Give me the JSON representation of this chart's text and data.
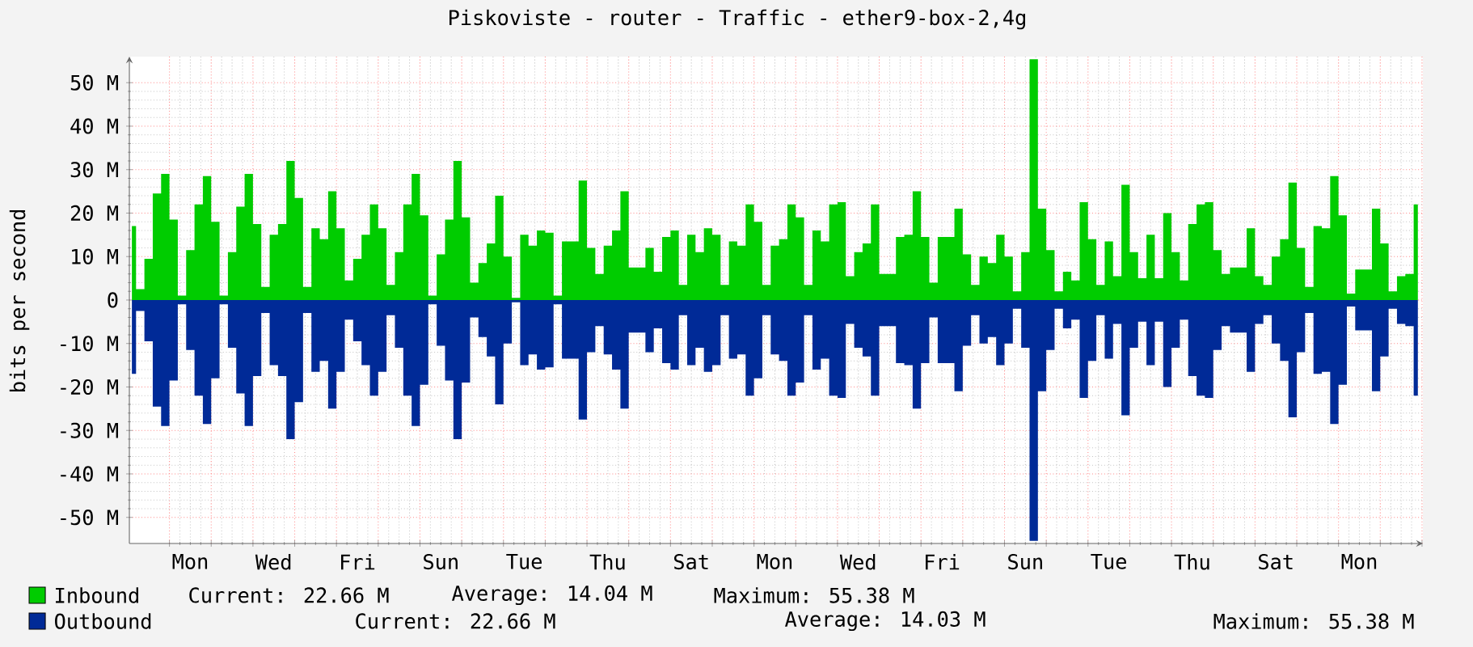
{
  "chart_data": {
    "type": "area",
    "title": "Piskoviste - router - Traffic - ether9-box-2,4g",
    "ylabel": "bits per second",
    "categories": [
      null,
      null,
      null,
      null,
      null,
      null,
      null,
      "Mon",
      null,
      null,
      null,
      null,
      null,
      null,
      null,
      null,
      null,
      "Wed",
      null,
      null,
      null,
      null,
      null,
      null,
      null,
      null,
      null,
      "Fri",
      null,
      null,
      null,
      null,
      null,
      null,
      null,
      null,
      null,
      "Sun",
      null,
      null,
      null,
      null,
      null,
      null,
      null,
      null,
      null,
      "Tue",
      null,
      null,
      null,
      null,
      null,
      null,
      null,
      null,
      null,
      "Thu",
      null,
      null,
      null,
      null,
      null,
      null,
      null,
      null,
      null,
      "Sat",
      null,
      null,
      null,
      null,
      null,
      null,
      null,
      null,
      null,
      "Mon",
      null,
      null,
      null,
      null,
      null,
      null,
      null,
      null,
      null,
      "Wed",
      null,
      null,
      null,
      null,
      null,
      null,
      null,
      null,
      null,
      "Fri",
      null,
      null,
      null,
      null,
      null,
      null,
      null,
      null,
      null,
      "Sun",
      null,
      null,
      null,
      null,
      null,
      null,
      null,
      null,
      null,
      "Tue",
      null,
      null,
      null,
      null,
      null,
      null,
      null,
      null,
      null,
      "Thu",
      null,
      null,
      null,
      null,
      null,
      null,
      null,
      null,
      null,
      "Sat",
      null,
      null,
      null,
      null,
      null,
      null,
      null,
      null,
      null,
      "Mon",
      null,
      null,
      null,
      null,
      null,
      null,
      null
    ],
    "series": [
      {
        "name": "Inbound",
        "color": "#00cc00",
        "values": [
          17,
          2.5,
          9.5,
          24.5,
          29,
          18.5,
          1,
          11.5,
          22,
          28.5,
          18,
          1,
          11,
          21.5,
          29,
          17.5,
          3,
          15,
          17.5,
          32,
          23.5,
          3,
          16.5,
          14,
          25,
          16.5,
          4.5,
          9.5,
          15,
          22,
          16.5,
          3.5,
          11,
          22,
          29,
          19.5,
          1,
          10.5,
          18.5,
          32,
          19,
          4,
          8.5,
          13,
          24,
          10,
          0.5,
          15,
          12.5,
          16,
          15.5,
          1,
          13.5,
          13.5,
          27.5,
          12,
          6,
          12.5,
          16,
          25,
          7.5,
          7.5,
          12,
          6.5,
          14.5,
          16,
          3.5,
          15,
          11,
          16.5,
          15,
          3.5,
          13.5,
          12.5,
          22,
          18,
          3.5,
          12.5,
          14,
          22,
          19,
          3.5,
          16,
          13.5,
          22,
          22.5,
          5.5,
          11,
          13,
          22,
          6,
          6,
          14.5,
          15,
          25,
          14.5,
          4,
          14.5,
          14.5,
          21,
          10.5,
          3.5,
          10,
          8.5,
          15,
          10,
          2,
          11,
          55.4,
          21,
          11.5,
          2,
          6.5,
          4.5,
          22.5,
          14,
          3.5,
          13.5,
          5.5,
          26.5,
          11,
          5,
          15,
          5,
          20,
          11,
          4.5,
          17.5,
          22,
          22.5,
          11.5,
          6,
          7.5,
          7.5,
          16.5,
          5.5,
          3.5,
          10,
          14,
          27,
          12,
          3,
          17,
          16.5,
          28.5,
          19.5,
          1.5,
          7,
          7,
          21,
          13,
          2,
          5.5,
          6,
          22
        ]
      },
      {
        "name": "Outbound",
        "color": "#002a97",
        "values": [
          -17,
          -2.5,
          -9.5,
          -24.5,
          -29,
          -18.5,
          -1,
          -11.5,
          -22,
          -28.5,
          -18,
          -1,
          -11,
          -21.5,
          -29,
          -17.5,
          -3,
          -15,
          -17.5,
          -32,
          -23.5,
          -3,
          -16.5,
          -14,
          -25,
          -16.5,
          -4.5,
          -9.5,
          -15,
          -22,
          -16.5,
          -3.5,
          -11,
          -22,
          -29,
          -19.5,
          -1,
          -10.5,
          -18.5,
          -32,
          -19,
          -4,
          -8.5,
          -13,
          -24,
          -10,
          -0.5,
          -15,
          -12.5,
          -16,
          -15.5,
          -1,
          -13.5,
          -13.5,
          -27.5,
          -12,
          -6,
          -12.5,
          -16,
          -25,
          -7.5,
          -7.5,
          -12,
          -6.5,
          -14.5,
          -16,
          -3.5,
          -15,
          -11,
          -16.5,
          -15,
          -3.5,
          -13.5,
          -12.5,
          -22,
          -18,
          -3.5,
          -12.5,
          -14,
          -22,
          -19,
          -3.5,
          -16,
          -13.5,
          -22,
          -22.5,
          -5.5,
          -11,
          -13,
          -22,
          -6,
          -6,
          -14.5,
          -15,
          -25,
          -14.5,
          -4,
          -14.5,
          -14.5,
          -21,
          -10.5,
          -3.5,
          -10,
          -8.5,
          -15,
          -10,
          -2,
          -11,
          -55.4,
          -21,
          -11.5,
          -2,
          -6.5,
          -4.5,
          -22.5,
          -14,
          -3.5,
          -13.5,
          -5.5,
          -26.5,
          -11,
          -5,
          -15,
          -5,
          -20,
          -11,
          -4.5,
          -17.5,
          -22,
          -22.5,
          -11.5,
          -6,
          -7.5,
          -7.5,
          -16.5,
          -5.5,
          -3.5,
          -10,
          -14,
          -27,
          -12,
          -3,
          -17,
          -16.5,
          -28.5,
          -19.5,
          -1.5,
          -7,
          -7,
          -21,
          -13,
          -2,
          -5.5,
          -6,
          -22
        ]
      }
    ],
    "ylim": [
      -56,
      56
    ],
    "yticks": [
      {
        "value": -50,
        "label": "-50 M"
      },
      {
        "value": -40,
        "label": "-40 M"
      },
      {
        "value": -30,
        "label": "-30 M"
      },
      {
        "value": -20,
        "label": "-20 M"
      },
      {
        "value": -10,
        "label": "-10 M"
      },
      0,
      {
        "value": 10,
        "label": "10 M"
      },
      {
        "value": 20,
        "label": "20 M"
      },
      {
        "value": 30,
        "label": "30 M"
      },
      {
        "value": 40,
        "label": "40 M"
      },
      {
        "value": 50,
        "label": "50 M"
      }
    ],
    "grid": true,
    "legend": "bottom",
    "annotations": [
      "Current: 22.66 M",
      "Average: 14.04 M",
      "Maximum: 55.38 M",
      "Current: 22.66 M",
      "Average: 14.03 M",
      "Maximum: 55.38 M"
    ]
  }
}
